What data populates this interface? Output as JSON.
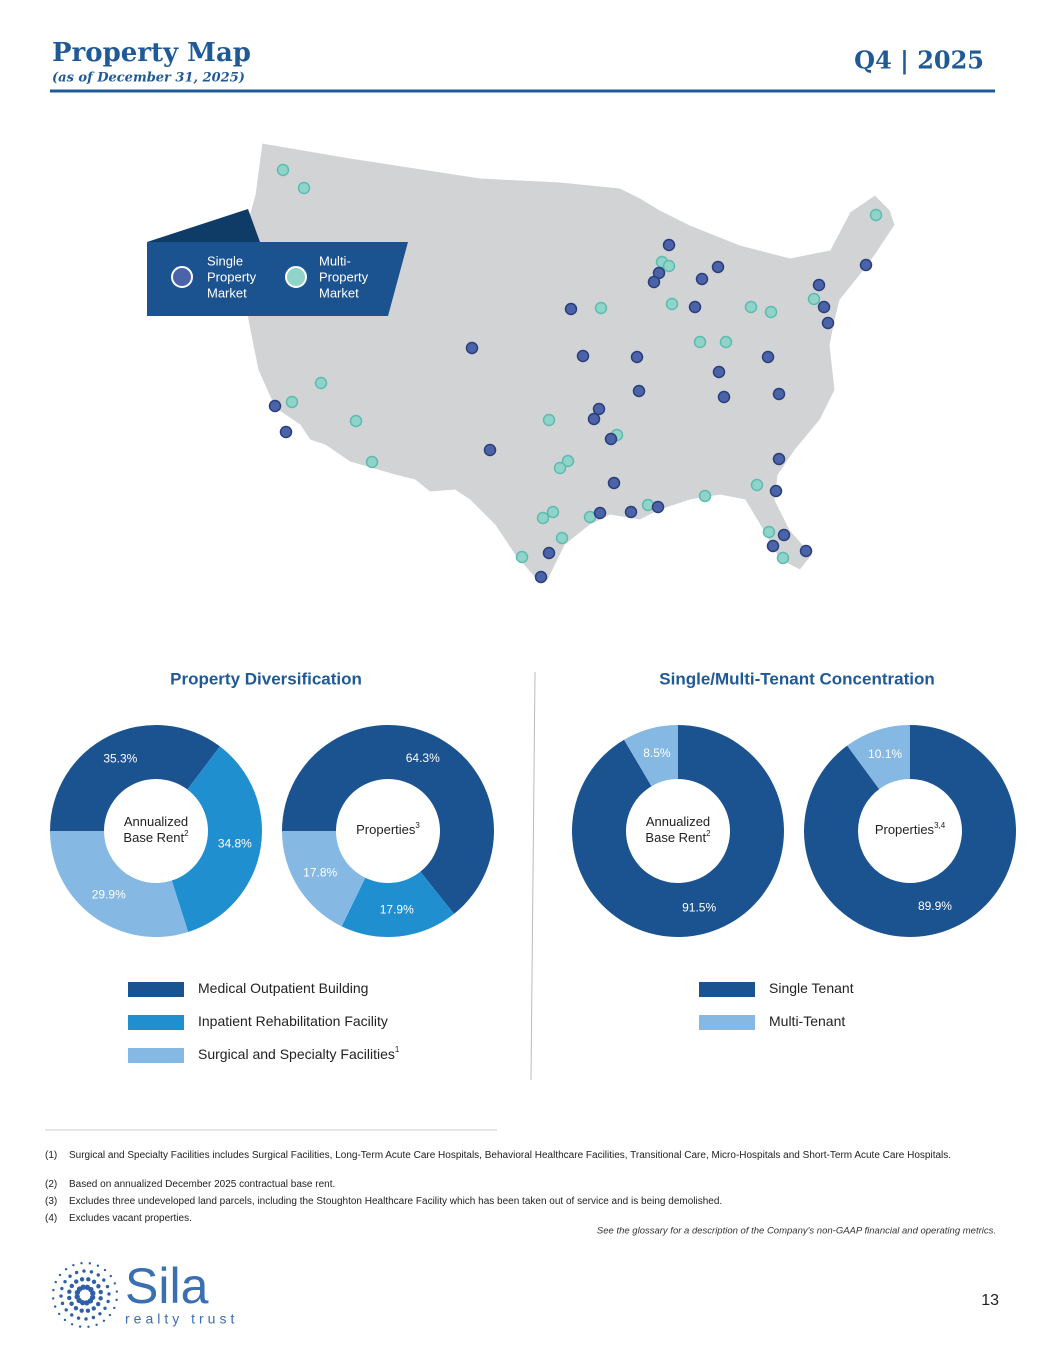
{
  "header": {
    "title": "Property Map",
    "subtitle": "(as of December 31, 2025)",
    "period": "Q4 | 2025"
  },
  "map": {
    "legend": {
      "single": [
        "Single",
        "Property",
        "Market"
      ],
      "multi": [
        "Multi-",
        "Property",
        "Market"
      ]
    }
  },
  "panels": [
    {
      "title": "Property Diversification",
      "legend": [
        {
          "name": "Medical Outpatient Building",
          "color": "#1b5390"
        },
        {
          "name": "Inpatient Rehabilitation Facility",
          "color": "#1f8fd0"
        },
        {
          "name": "Surgical and Specialty Facilities",
          "sup": "1",
          "color": "#85b8e3"
        }
      ]
    },
    {
      "title": "Single/Multi-Tenant Concentration",
      "legend": [
        {
          "name": "Single Tenant",
          "color": "#1b5390"
        },
        {
          "name": "Multi-Tenant",
          "color": "#85b8e3"
        }
      ]
    }
  ],
  "chart_data": [
    {
      "type": "pie",
      "center_label": [
        "Annualized",
        "Base Rent"
      ],
      "center_label_sup": "2",
      "values": [
        35.3,
        34.8,
        29.9
      ],
      "value_labels": [
        "35.3%",
        "34.8%",
        "29.9%"
      ]
    },
    {
      "type": "pie",
      "center_label": [
        "Properties"
      ],
      "center_label_sup": "3",
      "values": [
        64.3,
        17.9,
        17.8
      ],
      "value_labels": [
        "64.3%",
        "17.9%",
        "17.8%"
      ]
    },
    {
      "type": "pie",
      "center_label": [
        "Annualized",
        "Base Rent"
      ],
      "center_label_sup": "2",
      "values": [
        91.5,
        8.5
      ],
      "value_labels": [
        "91.5%",
        "8.5%"
      ]
    },
    {
      "type": "pie",
      "center_label": [
        "Properties"
      ],
      "center_label_sup": "3,4",
      "values": [
        89.9,
        10.1
      ],
      "value_labels": [
        "89.9%",
        "10.1%"
      ]
    }
  ],
  "footnotes": [
    {
      "marker": "(1)",
      "text": "Surgical and Specialty Facilities includes Surgical Facilities, Long-Term Acute Care Hospitals, Behavioral Healthcare Facilities, Transitional Care, Micro-Hospitals and Short-Term Acute Care Hospitals."
    },
    {
      "marker": "(2)",
      "text": "Based on annualized December 2025 contractual base rent."
    },
    {
      "marker": "(3)",
      "text": "Excludes three undeveloped land parcels, including the Stoughton Healthcare Facility which has been taken out of service and is being demolished."
    },
    {
      "marker": "(4)",
      "text": "Excludes vacant properties."
    }
  ],
  "glossary_note": "See the glossary for a description of the Company's non-GAAP financial and operating metrics.",
  "logo": {
    "name": "Sila",
    "tagline": "realty trust"
  },
  "page_number": "13"
}
